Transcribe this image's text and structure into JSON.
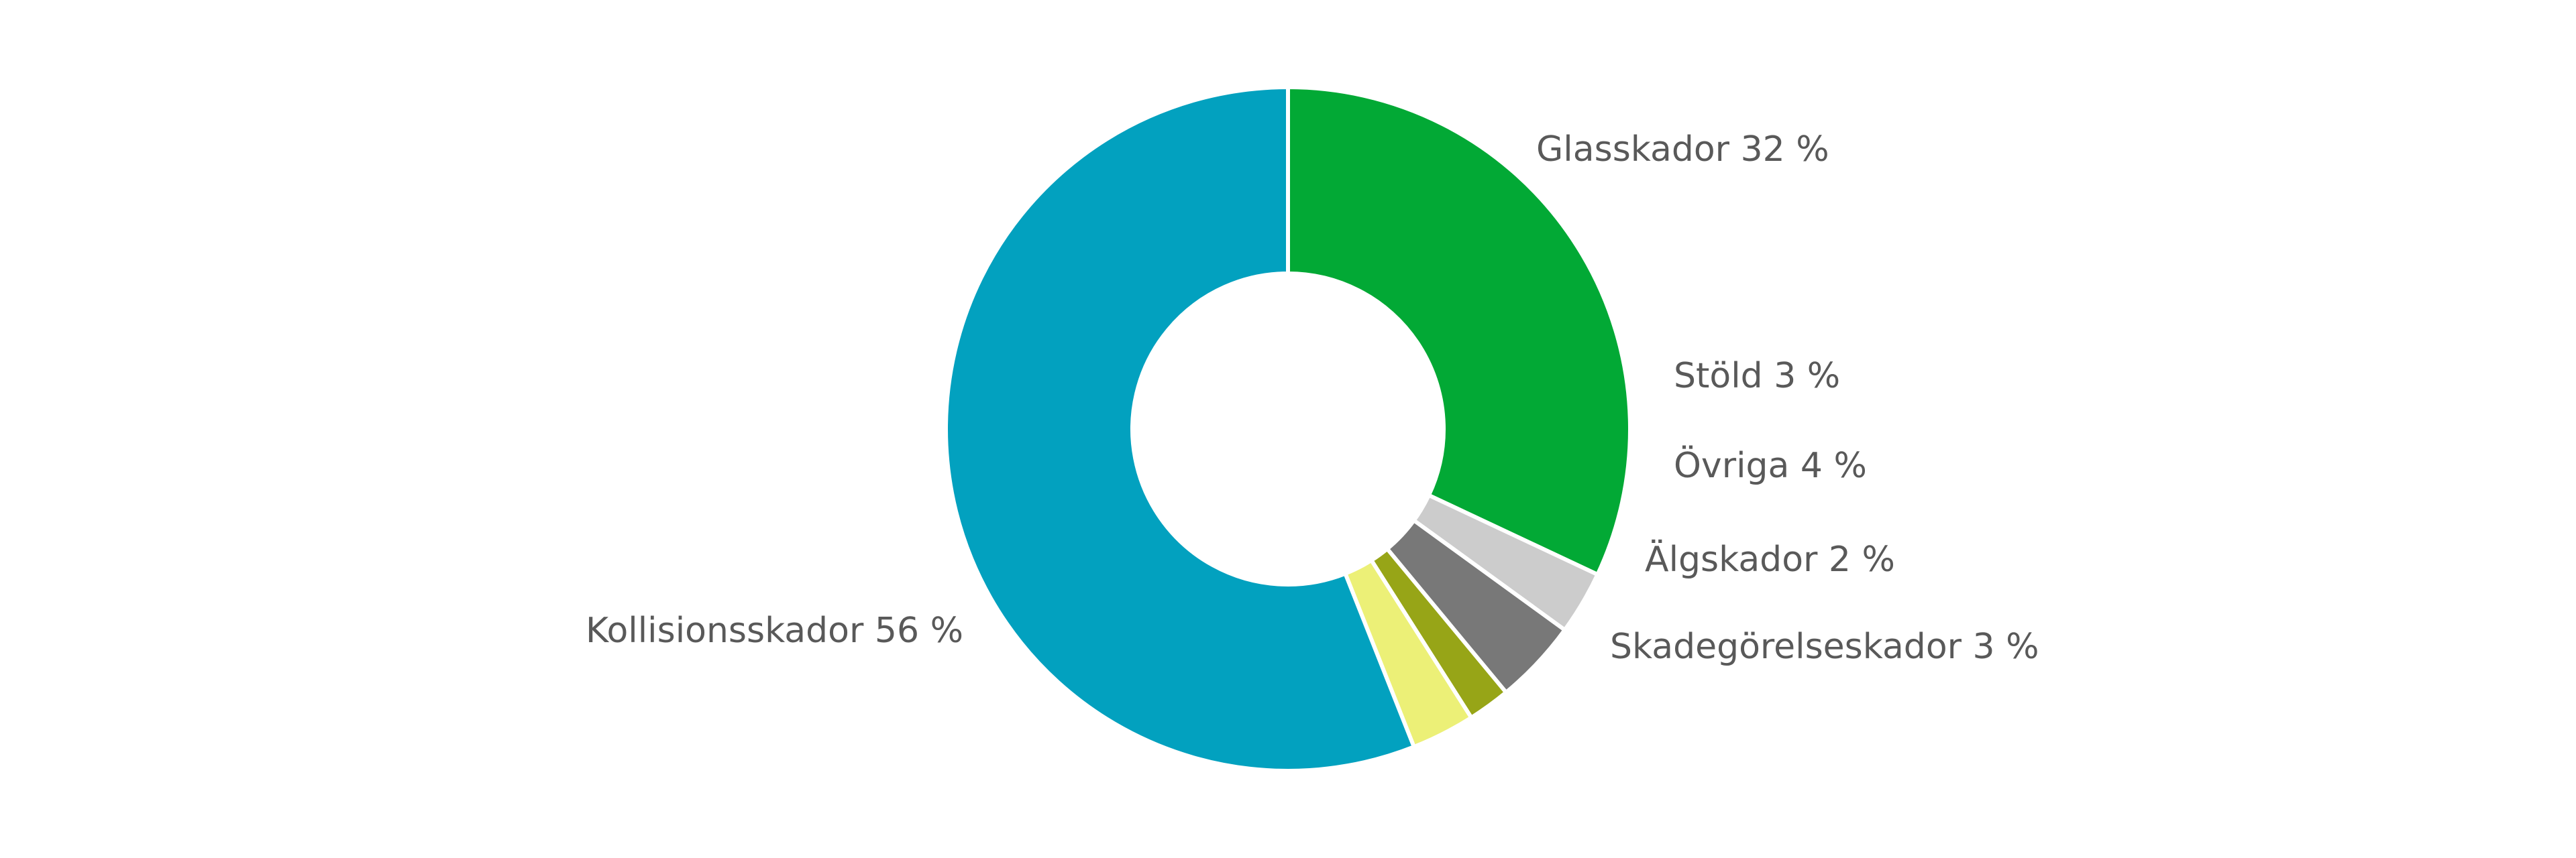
{
  "chart_data": {
    "type": "pie",
    "variant": "donut",
    "title": "",
    "start_direction": "clockwise-from-top",
    "slices": [
      {
        "label": "Glasskador 32 %",
        "name": "Glasskador",
        "value": 32,
        "color": "#02A935"
      },
      {
        "label": "Stöld 3 %",
        "name": "Stöld",
        "value": 3,
        "color": "#CCCCCC"
      },
      {
        "label": "Övriga 4 %",
        "name": "Övriga",
        "value": 4,
        "color": "#787878"
      },
      {
        "label": "Älgskador 2 %",
        "name": "Älgskador",
        "value": 2,
        "color": "#97A517"
      },
      {
        "label": "Skadegörelseskador 3 %",
        "name": "Skadegörelseskador",
        "value": 3,
        "color": "#ECF077"
      },
      {
        "label": "Kollisionsskador 56 %",
        "name": "Kollisionsskador",
        "value": 56,
        "color": "#02A1BF"
      }
    ],
    "separator_color": "#FFFFFF",
    "label_color": "#595959"
  }
}
